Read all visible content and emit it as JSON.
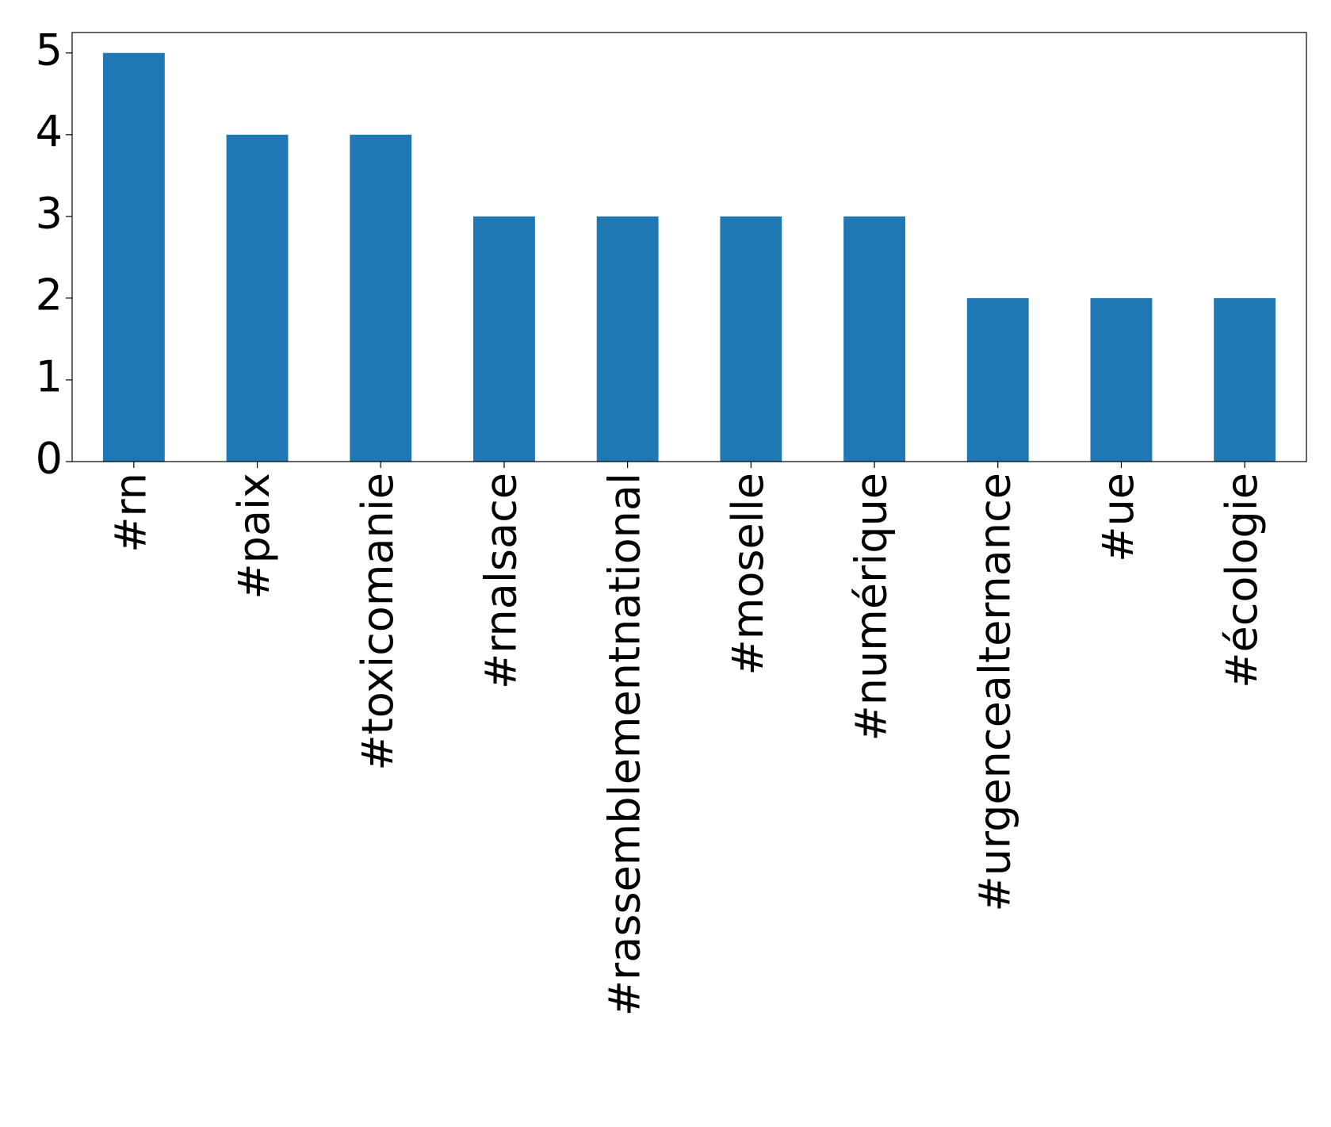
{
  "chart_data": {
    "type": "bar",
    "categories": [
      "#rn",
      "#paix",
      "#toxicomanie",
      "#rnalsace",
      "#rassemblementnational",
      "#moselle",
      "#numérique",
      "#urgencealternance",
      "#ue",
      "#écologie"
    ],
    "values": [
      5,
      4,
      4,
      3,
      3,
      3,
      3,
      2,
      2,
      2
    ],
    "color": "#1f77b4",
    "ylim": [
      0,
      5.25
    ],
    "yticks": [
      0,
      1,
      2,
      3,
      4,
      5
    ],
    "grid": false
  }
}
